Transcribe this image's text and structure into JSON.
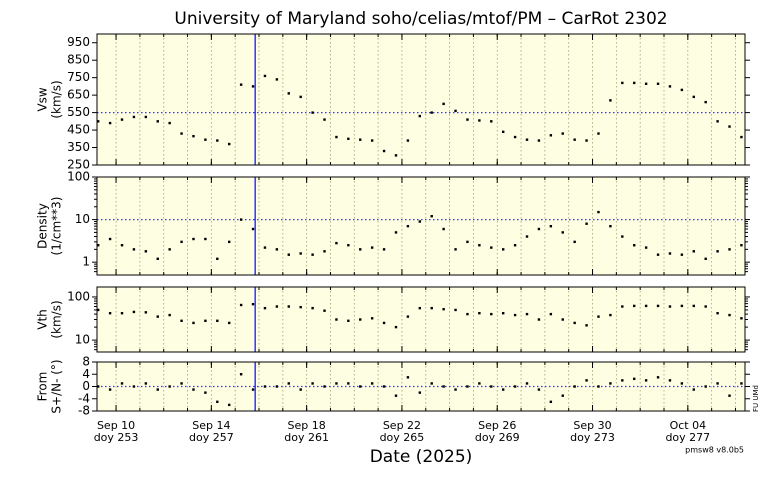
{
  "chart_data": {
    "type": "scatter",
    "title": "University of Maryland  soho/celias/mtof/PM – CarRot 2302",
    "xlabel": "Date (2025)",
    "version": "pmsw8 v8.0b5",
    "side_text": "FU UMd",
    "color": "#000000",
    "background": "#fefee3",
    "marker_color": "#3333ff",
    "marker_x": 258.84,
    "grid": true,
    "xlim": [
      252.2,
      279.4
    ],
    "xticks": [
      {
        "value": 253,
        "label": "Sep 10",
        "sublabel": "doy 253"
      },
      {
        "value": 257,
        "label": "Sep 14",
        "sublabel": "doy 257"
      },
      {
        "value": 261,
        "label": "Sep 18",
        "sublabel": "doy 261"
      },
      {
        "value": 265,
        "label": "Sep 22",
        "sublabel": "doy 265"
      },
      {
        "value": 269,
        "label": "Sep 26",
        "sublabel": "doy 269"
      },
      {
        "value": 273,
        "label": "Sep 30",
        "sublabel": "doy 273"
      },
      {
        "value": 277,
        "label": "Oct 04",
        "sublabel": "doy 277"
      }
    ],
    "x": [
      252.25,
      252.75,
      253.25,
      253.75,
      254.25,
      254.75,
      255.25,
      255.75,
      256.25,
      256.75,
      257.25,
      257.75,
      258.25,
      258.75,
      259.25,
      259.75,
      260.25,
      260.75,
      261.25,
      261.75,
      262.25,
      262.75,
      263.25,
      263.75,
      264.25,
      264.75,
      265.25,
      265.75,
      266.25,
      266.75,
      267.25,
      267.75,
      268.25,
      268.75,
      269.25,
      269.75,
      270.25,
      270.75,
      271.25,
      271.75,
      272.25,
      272.75,
      273.25,
      273.75,
      274.25,
      274.75,
      275.25,
      275.75,
      276.25,
      276.75,
      277.25,
      277.75,
      278.25,
      278.75,
      279.25
    ],
    "panels": [
      {
        "ylabel": [
          "Vsw",
          "(km/s)"
        ],
        "log": false,
        "ylim": [
          250,
          1000
        ],
        "yticks": [
          250,
          350,
          450,
          550,
          650,
          750,
          850,
          950
        ],
        "hline": 550,
        "values": [
          500,
          490,
          510,
          525,
          525,
          500,
          490,
          430,
          415,
          395,
          390,
          370,
          710,
          700,
          760,
          740,
          660,
          640,
          550,
          510,
          410,
          400,
          395,
          390,
          330,
          305,
          390,
          530,
          550,
          600,
          560,
          510,
          505,
          500,
          440,
          410,
          395,
          390,
          420,
          430,
          395,
          390,
          430,
          620,
          720,
          720,
          715,
          715,
          700,
          680,
          640,
          610,
          500,
          470,
          410
        ]
      },
      {
        "ylabel": [
          "Density",
          "(1/cm**3)"
        ],
        "log": true,
        "ylim": [
          0.5,
          100
        ],
        "yticks": [
          1,
          10,
          100
        ],
        "hline": 10,
        "values": [
          2.5,
          3.5,
          2.5,
          2.0,
          1.8,
          1.2,
          2.0,
          3,
          3.5,
          3.5,
          1.2,
          3,
          10,
          6,
          2.2,
          2,
          1.5,
          1.6,
          1.5,
          1.8,
          2.8,
          2.5,
          2,
          2.2,
          2,
          5,
          7,
          9,
          12,
          6,
          2,
          3,
          2.5,
          2.2,
          2,
          2.5,
          4,
          6,
          7,
          5,
          3,
          8,
          15,
          7,
          4,
          2.5,
          2.2,
          1.5,
          1.6,
          1.5,
          1.8,
          1.2,
          1.8,
          2,
          2.5
        ]
      },
      {
        "ylabel": [
          "Vth",
          "(km/s)"
        ],
        "log": true,
        "ylim": [
          5.3,
          170
        ],
        "yticks": [
          10,
          100
        ],
        "values": [
          50,
          42,
          42,
          45,
          44,
          35,
          38,
          28,
          25,
          28,
          28,
          25,
          65,
          68,
          55,
          60,
          60,
          58,
          55,
          48,
          30,
          28,
          30,
          32,
          25,
          20,
          35,
          55,
          55,
          52,
          50,
          40,
          42,
          40,
          42,
          38,
          40,
          30,
          40,
          30,
          25,
          22,
          35,
          38,
          60,
          62,
          62,
          62,
          60,
          62,
          62,
          60,
          42,
          38,
          32
        ]
      },
      {
        "ylabel": [
          "From",
          "S+/N- (°)"
        ],
        "log": false,
        "ylim": [
          -8,
          8
        ],
        "yticks": [
          -8,
          -4,
          0,
          4,
          8
        ],
        "hline": 0,
        "values": [
          0,
          -1,
          1,
          0,
          1,
          -1,
          0,
          1,
          -1,
          -2,
          -5,
          -6,
          4,
          -1,
          0,
          0,
          1,
          -1,
          1,
          0,
          1,
          1,
          0,
          1,
          0,
          -3,
          3,
          -2,
          1,
          0,
          -1,
          0,
          1,
          0,
          -1,
          0,
          1,
          -1,
          -5,
          -3,
          0,
          2,
          0,
          1,
          2,
          2.5,
          2,
          3,
          2,
          1,
          -1,
          0,
          1,
          -3,
          1
        ]
      }
    ]
  }
}
